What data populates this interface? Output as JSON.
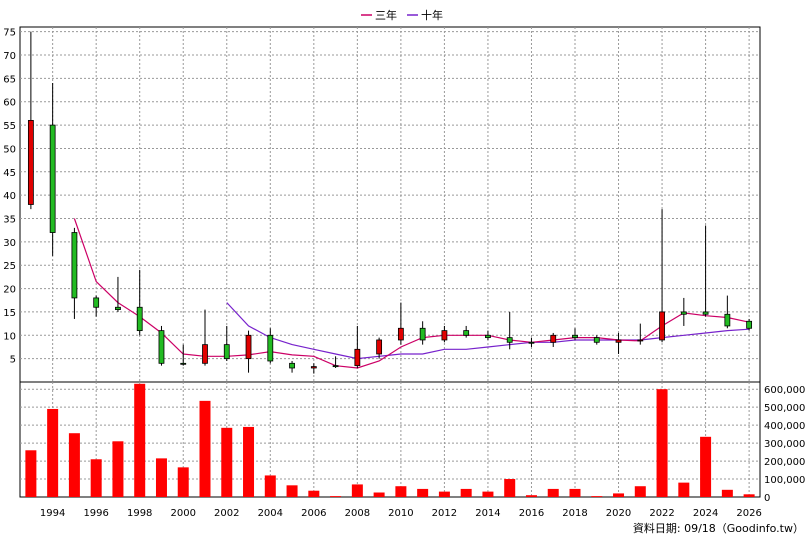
{
  "chart_data": {
    "type": "candlestick",
    "legend": [
      {
        "name": "三年",
        "color": "#cc0066"
      },
      {
        "name": "十年",
        "color": "#7722cc"
      }
    ],
    "source_text": "資料日期: 09/18（Goodinfo.tw）",
    "price_axis": {
      "min": 0,
      "max": 76,
      "ticks": [
        5,
        10,
        15,
        20,
        25,
        30,
        35,
        40,
        45,
        50,
        55,
        60,
        65,
        70,
        75
      ]
    },
    "volume_axis": {
      "min": 0,
      "max": 640000,
      "ticks": [
        0,
        100000,
        200000,
        300000,
        400000,
        500000,
        600000
      ],
      "tick_labels": [
        "0",
        "100,000",
        "200,000",
        "300,000",
        "400,000",
        "500,000",
        "600,000"
      ]
    },
    "x_axis": {
      "min": 1992.5,
      "max": 2026.5,
      "ticks": [
        1994,
        1996,
        1998,
        2000,
        2002,
        2004,
        2006,
        2008,
        2010,
        2012,
        2014,
        2016,
        2018,
        2020,
        2022,
        2024,
        2026
      ]
    },
    "candles": [
      {
        "year": 1993,
        "open": 38,
        "high": 75,
        "low": 37,
        "close": 56
      },
      {
        "year": 1994,
        "open": 55,
        "high": 64,
        "low": 27,
        "close": 32
      },
      {
        "year": 1995,
        "open": 32,
        "high": 33,
        "low": 13.5,
        "close": 18
      },
      {
        "year": 1996,
        "open": 18,
        "high": 18.5,
        "low": 14,
        "close": 16
      },
      {
        "year": 1997,
        "open": 16,
        "high": 22.5,
        "low": 15,
        "close": 15.5
      },
      {
        "year": 1998,
        "open": 16,
        "high": 24,
        "low": 10,
        "close": 11
      },
      {
        "year": 1999,
        "open": 11,
        "high": 12,
        "low": 3.5,
        "close": 4
      },
      {
        "year": 2000,
        "open": 4,
        "high": 8,
        "low": 3.5,
        "close": 3.8
      },
      {
        "year": 2001,
        "open": 4,
        "high": 15.5,
        "low": 3.5,
        "close": 8
      },
      {
        "year": 2002,
        "open": 8,
        "high": 12,
        "low": 4.5,
        "close": 5
      },
      {
        "year": 2003,
        "open": 5,
        "high": 11,
        "low": 2,
        "close": 10
      },
      {
        "year": 2004,
        "open": 10,
        "high": 11.5,
        "low": 4,
        "close": 4.5
      },
      {
        "year": 2005,
        "open": 4,
        "high": 4.5,
        "low": 2,
        "close": 3
      },
      {
        "year": 2006,
        "open": 3,
        "high": 4,
        "low": 1.8,
        "close": 3.3
      },
      {
        "year": 2007,
        "open": 3.5,
        "high": 5.5,
        "low": 3,
        "close": 3.3
      },
      {
        "year": 2008,
        "open": 3.5,
        "high": 12,
        "low": 3,
        "close": 7
      },
      {
        "year": 2009,
        "open": 6,
        "high": 9.5,
        "low": 5,
        "close": 9
      },
      {
        "year": 2010,
        "open": 9,
        "high": 17,
        "low": 8,
        "close": 11.5
      },
      {
        "year": 2011,
        "open": 11.5,
        "high": 13,
        "low": 8,
        "close": 9
      },
      {
        "year": 2012,
        "open": 9,
        "high": 12,
        "low": 8.5,
        "close": 11
      },
      {
        "year": 2013,
        "open": 11,
        "high": 12,
        "low": 9.5,
        "close": 10
      },
      {
        "year": 2014,
        "open": 10,
        "high": 11,
        "low": 9,
        "close": 9.5
      },
      {
        "year": 2015,
        "open": 9.5,
        "high": 15,
        "low": 7,
        "close": 8.5
      },
      {
        "year": 2016,
        "open": 8.5,
        "high": 9.5,
        "low": 7.5,
        "close": 8.3
      },
      {
        "year": 2017,
        "open": 8.5,
        "high": 10.5,
        "low": 7.5,
        "close": 10
      },
      {
        "year": 2018,
        "open": 10,
        "high": 11.5,
        "low": 9,
        "close": 9.5
      },
      {
        "year": 2019,
        "open": 9.5,
        "high": 10,
        "low": 8,
        "close": 8.5
      },
      {
        "year": 2020,
        "open": 8.5,
        "high": 10.5,
        "low": 6,
        "close": 9
      },
      {
        "year": 2021,
        "open": 9,
        "high": 12.5,
        "low": 8,
        "close": 9
      },
      {
        "year": 2022,
        "open": 9,
        "high": 37,
        "low": 8.5,
        "close": 15
      },
      {
        "year": 2023,
        "open": 15,
        "high": 18,
        "low": 12,
        "close": 14.5
      },
      {
        "year": 2024,
        "open": 15,
        "high": 33.5,
        "low": 14,
        "close": 14.5
      },
      {
        "year": 2025,
        "open": 14.5,
        "high": 18.5,
        "low": 11.5,
        "close": 12
      },
      {
        "year": 2026,
        "open": 13,
        "high": 13.5,
        "low": 11,
        "close": 11.5
      }
    ],
    "ma3": {
      "years": [
        1995,
        1996,
        1997,
        1998,
        1999,
        2000,
        2001,
        2002,
        2003,
        2004,
        2005,
        2006,
        2007,
        2008,
        2009,
        2010,
        2011,
        2012,
        2013,
        2014,
        2015,
        2016,
        2017,
        2018,
        2019,
        2020,
        2021,
        2022,
        2023,
        2024,
        2025,
        2026
      ],
      "values": [
        35,
        21.5,
        17,
        14,
        10.5,
        6,
        5.5,
        5.5,
        5.8,
        6.5,
        5.8,
        5.5,
        3.5,
        3,
        4.5,
        7.5,
        9.5,
        10,
        10,
        10,
        9,
        8.5,
        9,
        9.5,
        9.5,
        9,
        8.8,
        12,
        14.8,
        14.2,
        13.8,
        12.8
      ]
    },
    "ma10": {
      "years": [
        2002,
        2003,
        2004,
        2005,
        2006,
        2007,
        2008,
        2009,
        2010,
        2011,
        2012,
        2013,
        2014,
        2015,
        2016,
        2017,
        2018,
        2019,
        2020,
        2021,
        2022,
        2023,
        2024,
        2025,
        2026
      ],
      "values": [
        17,
        12,
        9.5,
        8,
        7,
        6,
        5,
        5.5,
        6,
        6,
        7,
        7,
        7.5,
        8,
        8.5,
        8.5,
        9,
        9,
        9,
        9,
        9.5,
        10,
        10.5,
        11,
        11.3
      ]
    },
    "volume": {
      "years": [
        1993,
        1994,
        1995,
        1996,
        1997,
        1998,
        1999,
        2000,
        2001,
        2002,
        2003,
        2004,
        2005,
        2006,
        2007,
        2008,
        2009,
        2010,
        2011,
        2012,
        2013,
        2014,
        2015,
        2016,
        2017,
        2018,
        2019,
        2020,
        2021,
        2022,
        2023,
        2024,
        2025,
        2026
      ],
      "values": [
        260000,
        490000,
        355000,
        210000,
        310000,
        630000,
        215000,
        165000,
        535000,
        385000,
        390000,
        120000,
        65000,
        35000,
        5000,
        70000,
        25000,
        60000,
        45000,
        30000,
        45000,
        30000,
        100000,
        10000,
        45000,
        45000,
        5000,
        20000,
        60000,
        600000,
        80000,
        335000,
        40000,
        15000
      ]
    }
  }
}
